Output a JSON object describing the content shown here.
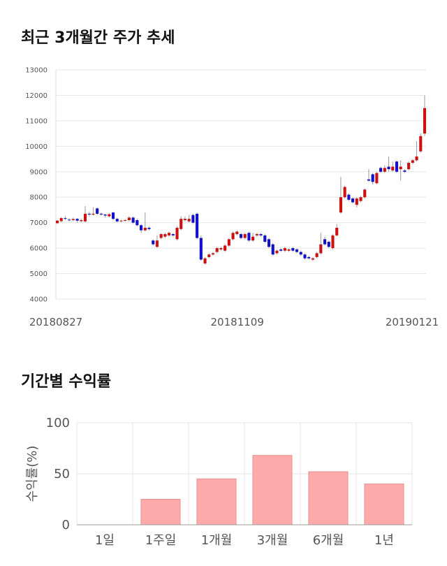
{
  "section1": {
    "title": "최근 3개월간 주가 추세"
  },
  "section2": {
    "title": "기간별 수익률"
  },
  "colors": {
    "up": "#cc1111",
    "down": "#1111cc",
    "bar": "#ffaaaa",
    "bar_stroke": "#e58f8f",
    "grid": "#e5e5e5"
  },
  "chart_data": [
    {
      "type": "candlestick",
      "title": "",
      "ylim": [
        4000,
        13000
      ],
      "yticks": [
        "13000",
        "12000",
        "11000",
        "10000",
        "9000",
        "8000",
        "7000",
        "6000",
        "5000",
        "4000"
      ],
      "date_labels": [
        "20180827",
        "20181109",
        "20190121"
      ],
      "grid": true,
      "candles": [
        [
          6980,
          7080,
          6950,
          7100
        ],
        [
          7060,
          7180,
          7020,
          7220
        ],
        [
          7180,
          7150,
          7100,
          7250
        ],
        [
          7120,
          7100,
          7050,
          7180
        ],
        [
          7100,
          7140,
          7060,
          7200
        ],
        [
          7150,
          7080,
          7000,
          7180
        ],
        [
          7060,
          7100,
          7020,
          7150
        ],
        [
          7050,
          7350,
          7000,
          7650
        ],
        [
          7350,
          7320,
          7250,
          7420
        ],
        [
          7320,
          7350,
          7280,
          7600
        ],
        [
          7560,
          7350,
          7300,
          7600
        ],
        [
          7350,
          7320,
          7280,
          7400
        ],
        [
          7320,
          7280,
          7200,
          7350
        ],
        [
          7250,
          7330,
          7200,
          7380
        ],
        [
          7400,
          7150,
          7100,
          7420
        ],
        [
          7150,
          7050,
          7000,
          7200
        ],
        [
          7060,
          7080,
          7020,
          7120
        ],
        [
          7080,
          7100,
          7040,
          7140
        ],
        [
          7100,
          7200,
          7050,
          7250
        ],
        [
          7200,
          7000,
          6950,
          7250
        ],
        [
          7100,
          6900,
          6850,
          7150
        ],
        [
          6900,
          6700,
          6600,
          6950
        ],
        [
          6700,
          6800,
          6650,
          7400
        ],
        [
          6800,
          6750,
          6700,
          6850
        ],
        [
          6300,
          6150,
          6100,
          6350
        ],
        [
          6050,
          6300,
          6000,
          6500
        ],
        [
          6400,
          6550,
          6350,
          6600
        ],
        [
          6450,
          6550,
          6400,
          6600
        ],
        [
          6500,
          6600,
          6450,
          6650
        ],
        [
          6550,
          6500,
          6450,
          6600
        ],
        [
          6350,
          6800,
          6300,
          6850
        ],
        [
          6750,
          7150,
          6700,
          7250
        ],
        [
          7100,
          7150,
          7050,
          7250
        ],
        [
          7050,
          7150,
          7000,
          7300
        ],
        [
          7300,
          7000,
          6950,
          7350
        ],
        [
          7350,
          6400,
          6350,
          7400
        ],
        [
          6400,
          5550,
          5500,
          6500
        ],
        [
          5400,
          5600,
          5350,
          5650
        ],
        [
          5650,
          5750,
          5600,
          5800
        ],
        [
          5750,
          5800,
          5700,
          5850
        ],
        [
          5850,
          6000,
          5800,
          6050
        ],
        [
          5950,
          6000,
          5900,
          6050
        ],
        [
          5900,
          6100,
          5850,
          6150
        ],
        [
          6100,
          6350,
          6050,
          6400
        ],
        [
          6350,
          6600,
          6300,
          6650
        ],
        [
          6550,
          6650,
          6500,
          6700
        ],
        [
          6550,
          6400,
          6350,
          6600
        ],
        [
          6400,
          6550,
          6350,
          6600
        ],
        [
          6600,
          6300,
          6250,
          6650
        ],
        [
          6300,
          6450,
          6250,
          6600
        ],
        [
          6500,
          6550,
          6450,
          6600
        ],
        [
          6550,
          6500,
          6450,
          6600
        ],
        [
          6500,
          6250,
          6200,
          6550
        ],
        [
          6350,
          6050,
          6000,
          6400
        ],
        [
          6150,
          5750,
          5700,
          6200
        ],
        [
          5800,
          5900,
          5750,
          5950
        ],
        [
          5950,
          5900,
          5850,
          6000
        ],
        [
          5900,
          6000,
          5850,
          6050
        ],
        [
          5900,
          5950,
          5850,
          6000
        ],
        [
          6000,
          5900,
          5850,
          6050
        ],
        [
          5950,
          5850,
          5800,
          6000
        ],
        [
          5850,
          5750,
          5700,
          5900
        ],
        [
          5750,
          5600,
          5550,
          5800
        ],
        [
          5650,
          5600,
          5550,
          5700
        ],
        [
          5550,
          5600,
          5500,
          5650
        ],
        [
          5650,
          5800,
          5600,
          5850
        ],
        [
          5800,
          6150,
          5750,
          6600
        ],
        [
          6350,
          6150,
          6100,
          6450
        ],
        [
          6250,
          6050,
          6000,
          6300
        ],
        [
          6000,
          6500,
          5950,
          6550
        ],
        [
          6500,
          6800,
          6450,
          6950
        ],
        [
          7400,
          8000,
          7350,
          8800
        ],
        [
          8000,
          8400,
          7950,
          8450
        ],
        [
          8100,
          7900,
          7850,
          8150
        ],
        [
          7950,
          7800,
          7750,
          8000
        ],
        [
          7700,
          7950,
          7600,
          8000
        ],
        [
          7850,
          8000,
          7800,
          8050
        ],
        [
          8000,
          8300,
          7950,
          8350
        ],
        [
          8700,
          8650,
          8600,
          9100
        ],
        [
          8900,
          8600,
          8500,
          8950
        ],
        [
          8550,
          8950,
          8500,
          9000
        ],
        [
          9150,
          9000,
          8950,
          9200
        ],
        [
          9000,
          9150,
          8950,
          9250
        ],
        [
          9200,
          9100,
          9000,
          9600
        ],
        [
          9050,
          9200,
          9000,
          9400
        ],
        [
          9400,
          9000,
          8950,
          9450
        ],
        [
          9100,
          9200,
          8650,
          9450
        ],
        [
          9050,
          9000,
          8950,
          9100
        ],
        [
          9100,
          9350,
          9050,
          9400
        ],
        [
          9350,
          9450,
          9300,
          9500
        ],
        [
          9450,
          9600,
          9400,
          10200
        ],
        [
          9800,
          10400,
          9750,
          10500
        ],
        [
          10500,
          11500,
          10400,
          12000
        ]
      ]
    },
    {
      "type": "bar",
      "title": "",
      "categories": [
        "1일",
        "1주일",
        "1개월",
        "3개월",
        "6개월",
        "1년"
      ],
      "values": [
        0,
        25,
        45,
        68,
        52,
        40
      ],
      "ylabel": "수익률(%)",
      "ylim": [
        0,
        100
      ],
      "yticks": [
        "100",
        "50",
        "0"
      ],
      "grid": true
    }
  ]
}
